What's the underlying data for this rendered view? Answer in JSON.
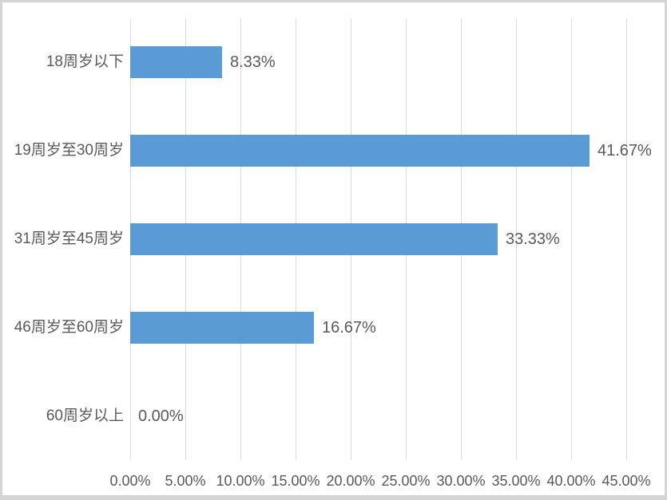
{
  "chart_data": {
    "type": "bar",
    "orientation": "horizontal",
    "title": "",
    "xlabel": "",
    "ylabel": "",
    "categories": [
      "18周岁以下",
      "19周岁至30周岁",
      "31周岁至45周岁",
      "46周岁至60周岁",
      "60周岁以上"
    ],
    "values": [
      8.33,
      41.67,
      33.33,
      16.67,
      0.0
    ],
    "data_labels": [
      "8.33%",
      "41.67%",
      "33.33%",
      "16.67%",
      "0.00%"
    ],
    "xlim": [
      0,
      45
    ],
    "x_ticks": [
      0,
      5,
      10,
      15,
      20,
      25,
      30,
      35,
      40,
      45
    ],
    "x_tick_labels": [
      "0.00%",
      "5.00%",
      "10.00%",
      "15.00%",
      "20.00%",
      "25.00%",
      "30.00%",
      "35.00%",
      "40.00%",
      "45.00%"
    ],
    "grid": "vertical",
    "legend": false,
    "colors": {
      "bar": "#5B9BD5",
      "gridline": "#D9D9D9",
      "text": "#595959",
      "frame_border": "#D5D5D5",
      "background": "#FFFFFF"
    }
  }
}
